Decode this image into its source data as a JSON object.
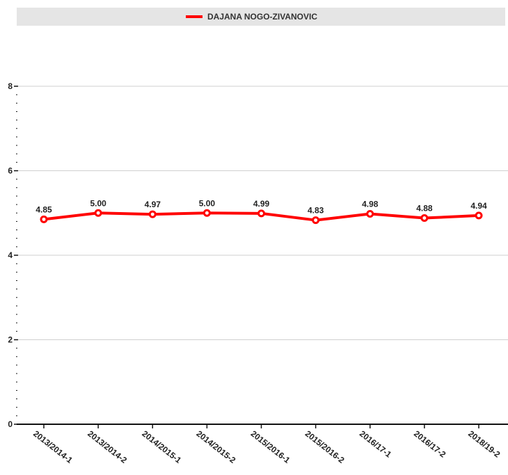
{
  "chart_data": {
    "type": "line",
    "categories": [
      "2013/2014-1",
      "2013/2014-2",
      "2014/2015-1",
      "2014/2015-2",
      "2015/2016-1",
      "2015/2016-2",
      "2016/17-1",
      "2016/17-2",
      "2018/19-2"
    ],
    "series": [
      {
        "name": "DAJANA NOGO-ZIVANOVIC",
        "values": [
          4.85,
          5.0,
          4.97,
          5.0,
          4.99,
          4.83,
          4.98,
          4.88,
          4.94
        ],
        "labels": [
          "4.85",
          "5.00",
          "4.97",
          "5.00",
          "4.99",
          "4.83",
          "4.98",
          "4.88",
          "4.94"
        ],
        "color": "#ff0000"
      }
    ],
    "yticks": [
      "0",
      "2",
      "4",
      "6",
      "8"
    ],
    "ylim": [
      0,
      8
    ],
    "grid": true,
    "legend_position": "top"
  }
}
